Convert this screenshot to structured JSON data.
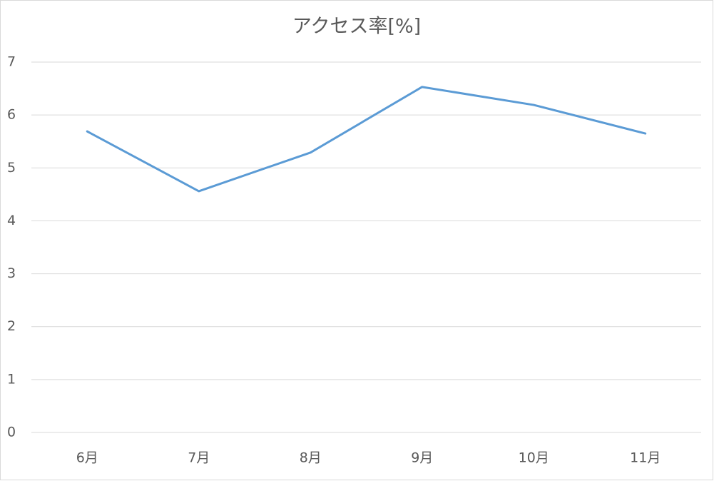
{
  "chart_data": {
    "type": "line",
    "title": "アクセス率[%]",
    "categories": [
      "6月",
      "7月",
      "8月",
      "9月",
      "10月",
      "11月"
    ],
    "series": [
      {
        "name": "アクセス率[%]",
        "color": "#5b9bd5",
        "values": [
          5.69,
          4.56,
          5.29,
          6.53,
          6.19,
          5.65
        ]
      }
    ],
    "ylim": [
      0,
      7
    ],
    "yticks": [
      0,
      1,
      2,
      3,
      4,
      5,
      6,
      7
    ],
    "grid": true
  }
}
